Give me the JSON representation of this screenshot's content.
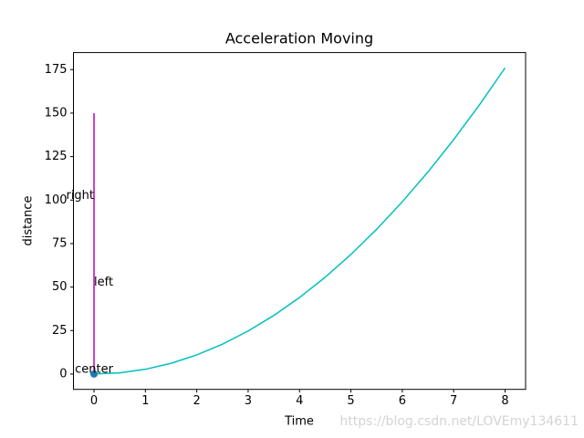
{
  "chart_data": {
    "type": "line",
    "title": "Acceleration Moving",
    "xlabel": "Time",
    "ylabel": "distance",
    "xlim": [
      -0.4,
      8.4
    ],
    "ylim": [
      -8.8,
      184.8
    ],
    "xticks": [
      0,
      1,
      2,
      3,
      4,
      5,
      6,
      7,
      8
    ],
    "yticks": [
      0,
      25,
      50,
      75,
      100,
      125,
      150,
      175
    ],
    "series": [
      {
        "type": "line",
        "color": "#00bfbf",
        "x": [
          0,
          0.5,
          1,
          1.5,
          2,
          2.5,
          3,
          3.5,
          4,
          4.5,
          5,
          5.5,
          6,
          6.5,
          7,
          7.5,
          8
        ],
        "values": [
          0,
          0.6875,
          2.75,
          6.1875,
          11,
          17.1875,
          24.75,
          33.6875,
          44,
          55.6875,
          68.75,
          83.1875,
          99,
          116.1875,
          134.75,
          154.6875,
          176
        ]
      },
      {
        "type": "line",
        "color": "#bf00bf",
        "x": [
          0,
          0
        ],
        "values": [
          0,
          150
        ]
      },
      {
        "type": "scatter",
        "color": "#1f77b4",
        "x": [
          0
        ],
        "values": [
          0
        ]
      }
    ],
    "annotations": [
      {
        "text": "center",
        "x": 0,
        "y": 0,
        "align": "center"
      },
      {
        "text": "left",
        "x": 0,
        "y": 50,
        "align": "left"
      },
      {
        "text": "right",
        "x": 0,
        "y": 100,
        "align": "right"
      }
    ],
    "watermark": "https://blog.csdn.net/LOVEmy134611"
  }
}
